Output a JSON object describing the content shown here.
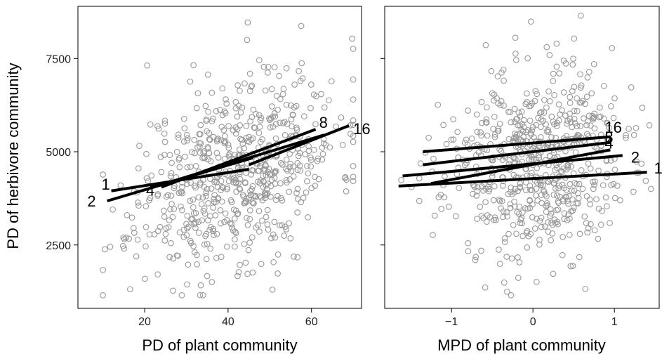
{
  "chart_data": [
    {
      "type": "scatter",
      "xlabel": "PD of plant community",
      "ylabel": "PD of herbivore community",
      "xlim": [
        4,
        72
      ],
      "ylim": [
        800,
        8900
      ],
      "xticks": [
        20,
        40,
        60
      ],
      "yticks": [
        2500,
        5000,
        7500
      ],
      "grid": false,
      "point_color": "#999999",
      "line_color": "#000000",
      "n_points": 650,
      "seed": 11,
      "x_mean": 42,
      "x_sd": 12,
      "x_min": 10,
      "x_max": 70,
      "y_intercept": 2900,
      "y_slope": 38,
      "y_sd": 1250,
      "y_min": 1150,
      "y_max": 8650,
      "regression_lines": [
        {
          "label": "1",
          "x": [
            12,
            45
          ],
          "y": [
            3950,
            4530
          ]
        },
        {
          "label": "2",
          "x": [
            11,
            46
          ],
          "y": [
            3680,
            4840
          ]
        },
        {
          "label": "4",
          "x": [
            22,
            63
          ],
          "y": [
            4050,
            5450
          ]
        },
        {
          "label": "8",
          "x": [
            24,
            61
          ],
          "y": [
            4050,
            5600
          ]
        },
        {
          "label": "16",
          "x": [
            45,
            69
          ],
          "y": [
            4650,
            5700
          ]
        }
      ]
    },
    {
      "type": "scatter",
      "xlabel": "MPD of plant community",
      "ylabel": "",
      "xlim": [
        -1.82,
        1.55
      ],
      "ylim": [
        800,
        8900
      ],
      "xticks": [
        -1,
        0,
        1
      ],
      "xtick_labels": [
        "−1",
        "0",
        "1"
      ],
      "yticks": [
        2500,
        5000,
        7500
      ],
      "grid": false,
      "point_color": "#999999",
      "line_color": "#000000",
      "n_points": 650,
      "seed": 23,
      "x_mean": 0.0,
      "x_sd": 0.55,
      "x_min": -1.68,
      "x_max": 1.45,
      "y_intercept": 4650,
      "y_slope": 180,
      "y_sd": 1250,
      "y_min": 1150,
      "y_max": 8650,
      "regression_lines": [
        {
          "label": "1",
          "x": [
            -1.65,
            1.4
          ],
          "y": [
            4080,
            4450
          ]
        },
        {
          "label": "2",
          "x": [
            -1.6,
            1.1
          ],
          "y": [
            4350,
            4900
          ]
        },
        {
          "label": "4",
          "x": [
            -1.25,
            0.95
          ],
          "y": [
            4150,
            5050
          ]
        },
        {
          "label": "8",
          "x": [
            -1.35,
            0.95
          ],
          "y": [
            4650,
            5250
          ]
        },
        {
          "label": "16",
          "x": [
            -1.35,
            0.95
          ],
          "y": [
            5000,
            5400
          ]
        }
      ]
    }
  ]
}
